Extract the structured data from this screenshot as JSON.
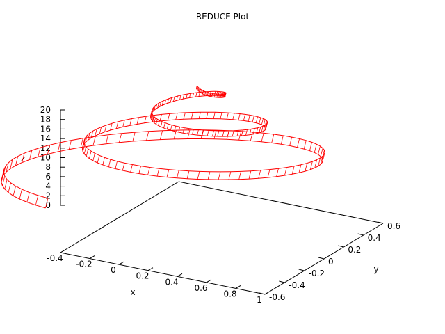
{
  "chart_data": {
    "type": "surface3d",
    "title": "REDUCE Plot",
    "xlabel": "x",
    "ylabel": "y",
    "zlabel": "z",
    "xlim": [
      -0.4,
      1
    ],
    "ylim": [
      -0.6,
      0.6
    ],
    "zlim": [
      0,
      20
    ],
    "xticks": [
      "-0.4",
      "-0.2",
      "0",
      "0.2",
      "0.4",
      "0.6",
      "0.8",
      "1"
    ],
    "yticks": [
      "-0.6",
      "-0.4",
      "-0.2",
      "0",
      "0.2",
      "0.4",
      "0.6"
    ],
    "zticks": [
      "0",
      "2",
      "4",
      "6",
      "8",
      "10",
      "12",
      "14",
      "16",
      "18",
      "20"
    ],
    "series": [
      {
        "color": "#ff0000",
        "style": "ribbon-mesh",
        "shape": "spiral ribbon rising and tightening toward the top"
      }
    ],
    "grid": false,
    "legend": "none"
  }
}
